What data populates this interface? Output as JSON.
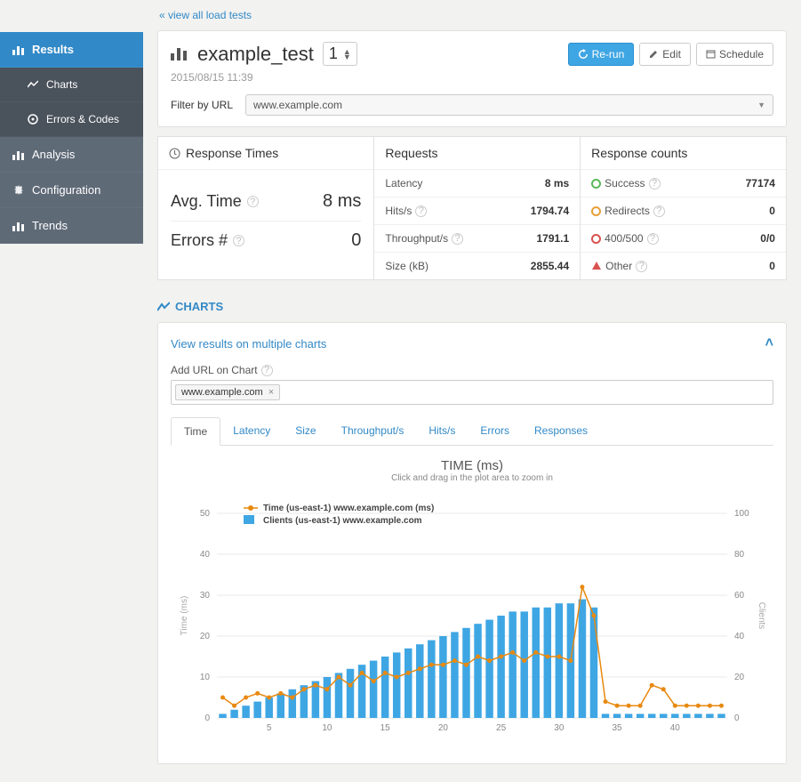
{
  "back_link": "« view all load tests",
  "sidebar": {
    "items": [
      {
        "label": "Results",
        "icon": "bars"
      },
      {
        "label": "Charts",
        "icon": "line"
      },
      {
        "label": "Errors & Codes",
        "icon": "gear"
      },
      {
        "label": "Analysis",
        "icon": "bars"
      },
      {
        "label": "Configuration",
        "icon": "gear"
      },
      {
        "label": "Trends",
        "icon": "bars"
      }
    ]
  },
  "header": {
    "test_name": "example_test",
    "run_number": "1",
    "timestamp": "2015/08/15 11:39",
    "buttons": {
      "rerun": "Re-run",
      "edit": "Edit",
      "schedule": "Schedule"
    }
  },
  "filter": {
    "label": "Filter by URL",
    "value": "www.example.com"
  },
  "response_times": {
    "title": "Response Times",
    "avg_label": "Avg. Time",
    "avg_value": "8 ms",
    "errors_label": "Errors #",
    "errors_value": "0"
  },
  "requests": {
    "title": "Requests",
    "rows": [
      {
        "label": "Latency",
        "value": "8 ms",
        "help": false
      },
      {
        "label": "Hits/s",
        "value": "1794.74",
        "help": true
      },
      {
        "label": "Throughput/s",
        "value": "1791.1",
        "help": true
      },
      {
        "label": "Size (kB)",
        "value": "2855.44",
        "help": false
      }
    ]
  },
  "response_counts": {
    "title": "Response counts",
    "rows": [
      {
        "label": "Success",
        "value": "77174",
        "icon": "success"
      },
      {
        "label": "Redirects",
        "value": "0",
        "icon": "redirect"
      },
      {
        "label": "400/500",
        "value": "0/0",
        "icon": "error"
      },
      {
        "label": "Other",
        "value": "0",
        "icon": "other"
      }
    ]
  },
  "charts_section": {
    "header": "CHARTS",
    "multi_link": "View results on multiple charts",
    "add_url_label": "Add URL on Chart",
    "url_chip": "www.example.com",
    "tabs": [
      "Time",
      "Latency",
      "Size",
      "Throughput/s",
      "Hits/s",
      "Errors",
      "Responses"
    ],
    "active_tab": 0
  },
  "chart": {
    "title": "TIME (ms)",
    "subtitle": "Click and drag in the plot area to zoom in",
    "legend_line": "Time (us-east-1) www.example.com (ms)",
    "legend_bar": "Clients (us-east-1) www.example.com",
    "y_left": {
      "label": "Time (ms)",
      "min": 0,
      "max": 50,
      "step": 10
    },
    "y_right": {
      "label": "Clients",
      "min": 0,
      "max": 100,
      "step": 20
    },
    "x": {
      "min": 1,
      "max": 44,
      "tick_step": 5
    },
    "bar_color": "#3fa6e4",
    "line_color": "#e8890f",
    "grid_color": "#e8e8e8",
    "clients": [
      2,
      4,
      6,
      8,
      10,
      12,
      14,
      16,
      18,
      20,
      22,
      24,
      26,
      28,
      30,
      32,
      34,
      36,
      38,
      40,
      42,
      44,
      46,
      48,
      50,
      52,
      52,
      54,
      54,
      56,
      56,
      58,
      54,
      2,
      2,
      2,
      2,
      2,
      2,
      2,
      2,
      2,
      2,
      2
    ],
    "time": [
      5,
      3,
      5,
      6,
      5,
      6,
      5,
      7,
      8,
      7,
      10,
      8,
      11,
      9,
      11,
      10,
      11,
      12,
      13,
      13,
      14,
      13,
      15,
      14,
      15,
      16,
      14,
      16,
      15,
      15,
      14,
      32,
      25,
      4,
      3,
      3,
      3,
      8,
      7,
      3,
      3,
      3,
      3,
      3
    ]
  }
}
